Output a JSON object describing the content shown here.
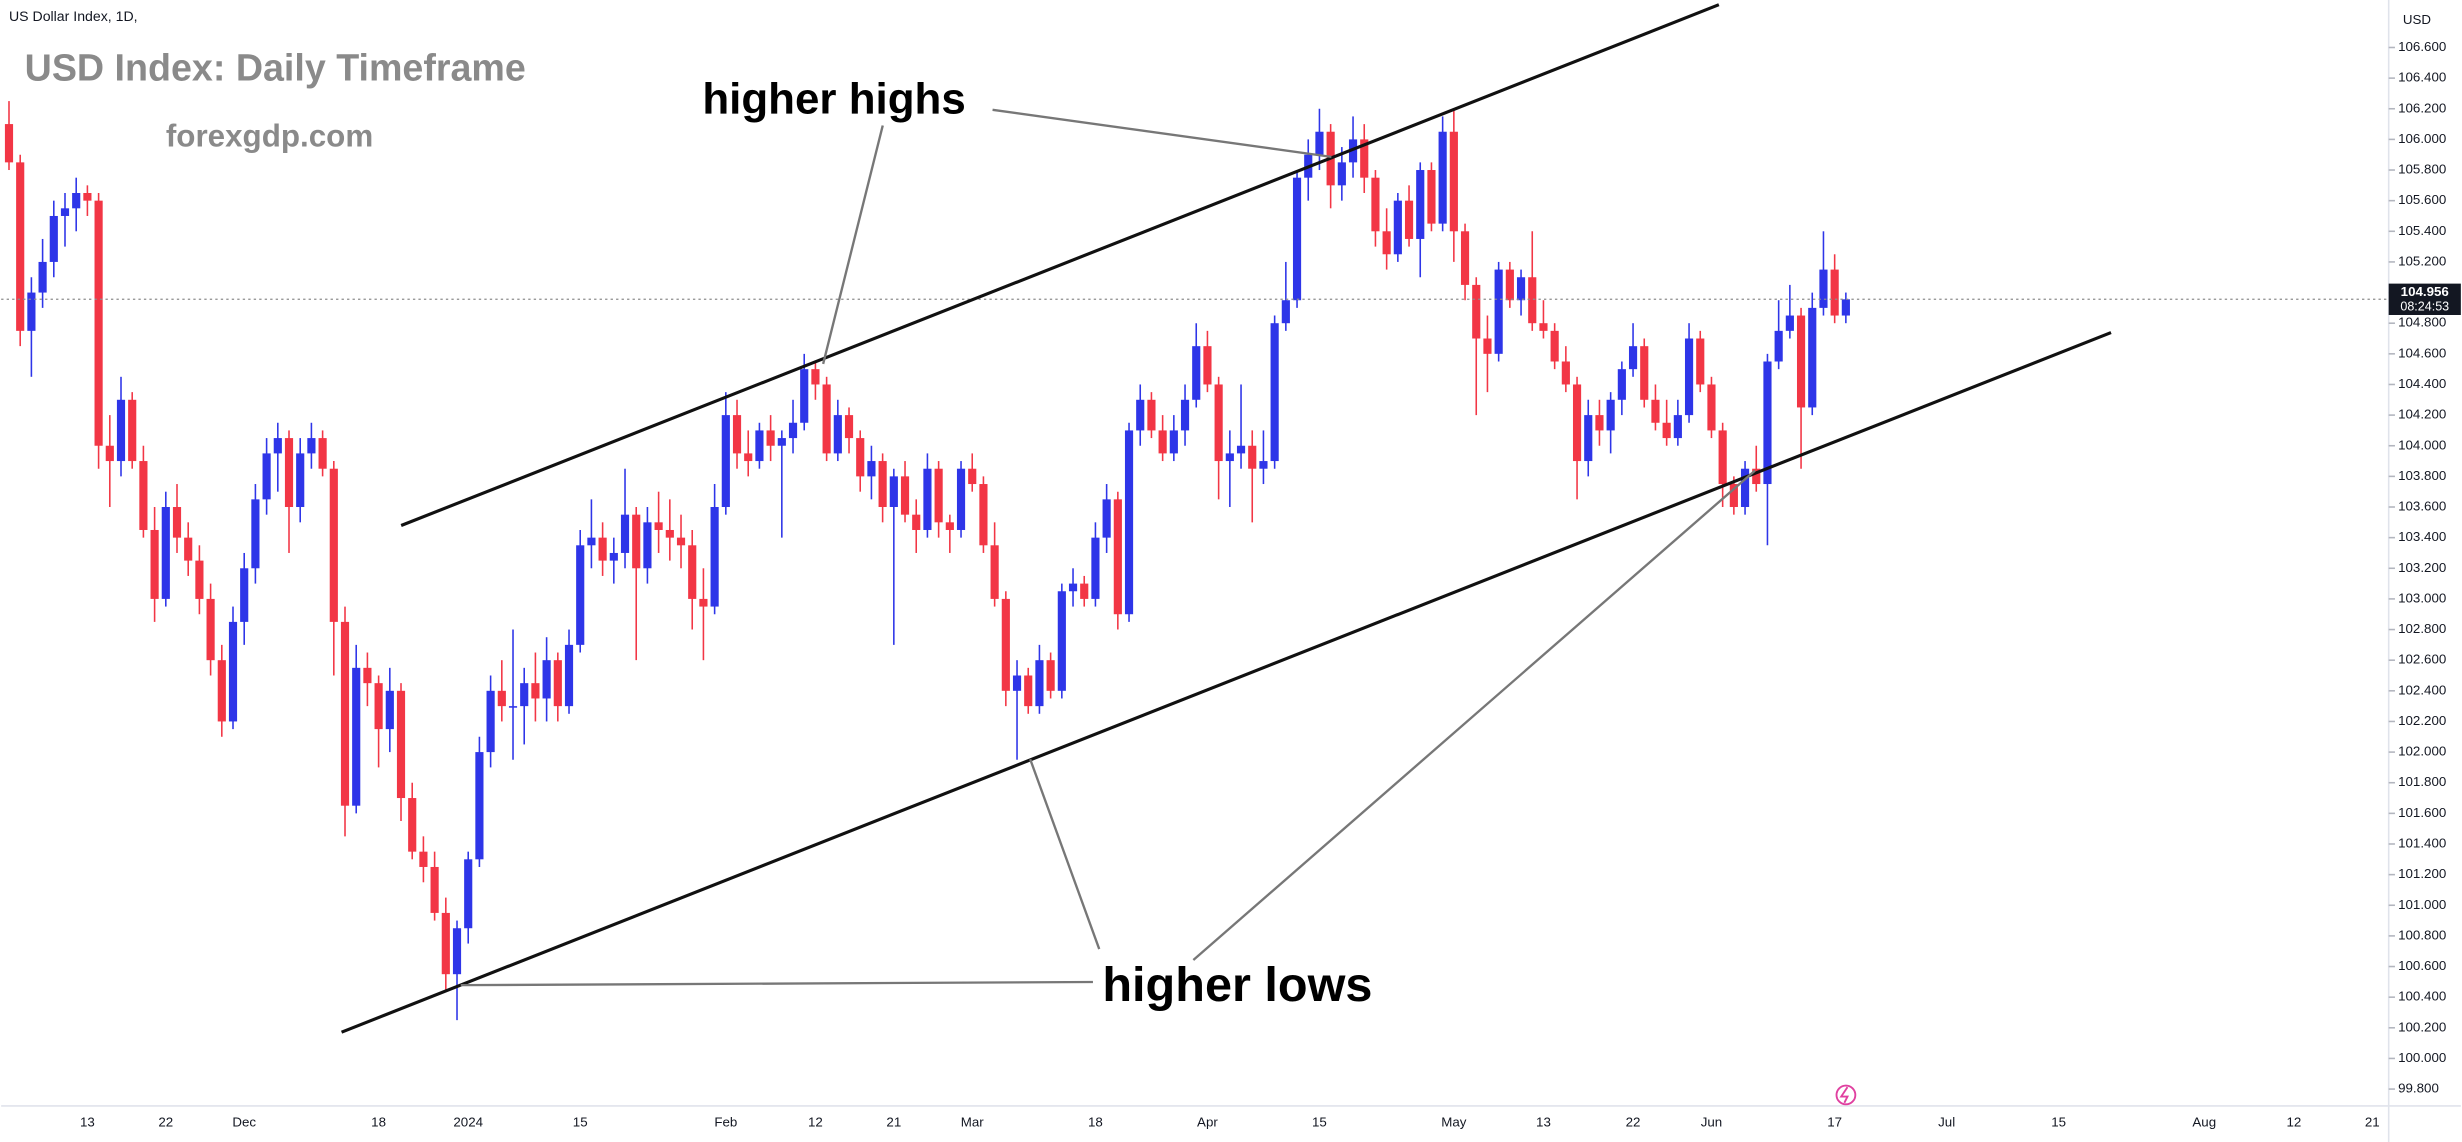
{
  "chart_data": {
    "type": "candlestick",
    "symbol_label": "US Dollar Index, 1D,",
    "title": "USD Index: Daily Timeframe",
    "subtitle": "forexgdp.com",
    "annotations": [
      "higher highs",
      "higher lows"
    ],
    "y_unit": "USD",
    "last_price": 104.956,
    "countdown": "08:24:53",
    "up_color": "#2e35e8",
    "down_color": "#f23645",
    "grid": false,
    "ylim": [
      99.69,
      106.91
    ],
    "yticks": [
      {
        "value": 99.8,
        "label": "99.800"
      },
      {
        "value": 100,
        "label": "100.000"
      },
      {
        "value": 100.2,
        "label": "100.200"
      },
      {
        "value": 100.4,
        "label": "100.400"
      },
      {
        "value": 100.6,
        "label": "100.600"
      },
      {
        "value": 100.8,
        "label": "100.800"
      },
      {
        "value": 101,
        "label": "101.000"
      },
      {
        "value": 101.2,
        "label": "101.200"
      },
      {
        "value": 101.4,
        "label": "101.400"
      },
      {
        "value": 101.6,
        "label": "101.600"
      },
      {
        "value": 101.8,
        "label": "101.800"
      },
      {
        "value": 102,
        "label": "102.000"
      },
      {
        "value": 102.2,
        "label": "102.200"
      },
      {
        "value": 102.4,
        "label": "102.400"
      },
      {
        "value": 102.6,
        "label": "102.600"
      },
      {
        "value": 102.8,
        "label": "102.800"
      },
      {
        "value": 103,
        "label": "103.000"
      },
      {
        "value": 103.2,
        "label": "103.200"
      },
      {
        "value": 103.4,
        "label": "103.400"
      },
      {
        "value": 103.6,
        "label": "103.600"
      },
      {
        "value": 103.8,
        "label": "103.800"
      },
      {
        "value": 104,
        "label": "104.000"
      },
      {
        "value": 104.2,
        "label": "104.200"
      },
      {
        "value": 104.4,
        "label": "104.400"
      },
      {
        "value": 104.6,
        "label": "104.600"
      },
      {
        "value": 104.8,
        "label": "104.800"
      },
      {
        "value": 105,
        "label": "105.000"
      },
      {
        "value": 105.2,
        "label": "105.200"
      },
      {
        "value": 105.4,
        "label": "105.400"
      },
      {
        "value": 105.6,
        "label": "105.600"
      },
      {
        "value": 105.8,
        "label": "105.800"
      },
      {
        "value": 106,
        "label": "106.000"
      },
      {
        "value": 106.2,
        "label": "106.200"
      },
      {
        "value": 106.4,
        "label": "106.400"
      },
      {
        "value": 106.6,
        "label": "106.600"
      }
    ],
    "categories": [
      null,
      null,
      null,
      null,
      null,
      null,
      null,
      "13",
      null,
      null,
      null,
      null,
      null,
      null,
      "22",
      null,
      null,
      null,
      null,
      null,
      null,
      "Dec",
      null,
      null,
      null,
      null,
      null,
      null,
      null,
      null,
      null,
      null,
      null,
      "18",
      null,
      null,
      null,
      null,
      null,
      null,
      null,
      "2024",
      null,
      null,
      null,
      null,
      null,
      null,
      null,
      null,
      null,
      "15",
      null,
      null,
      null,
      null,
      null,
      null,
      null,
      null,
      null,
      null,
      null,
      null,
      "Feb",
      null,
      null,
      null,
      null,
      null,
      null,
      null,
      "12",
      null,
      null,
      null,
      null,
      null,
      null,
      "21",
      null,
      null,
      null,
      null,
      null,
      null,
      "Mar",
      null,
      null,
      null,
      null,
      null,
      null,
      null,
      null,
      null,
      null,
      "18",
      null,
      null,
      null,
      null,
      null,
      null,
      null,
      null,
      null,
      "Apr",
      null,
      null,
      null,
      null,
      null,
      null,
      null,
      null,
      null,
      "15",
      null,
      null,
      null,
      null,
      null,
      null,
      null,
      null,
      null,
      null,
      null,
      "May",
      null,
      null,
      null,
      null,
      null,
      null,
      null,
      "13",
      null,
      null,
      null,
      null,
      null,
      null,
      null,
      "22",
      null,
      null,
      null,
      null,
      null,
      null,
      "Jun",
      null,
      null,
      null,
      null,
      null,
      null,
      null,
      null,
      null,
      null,
      "17",
      null,
      null,
      null,
      null,
      null,
      null,
      null,
      null,
      null,
      "Jul",
      null,
      null,
      null,
      null,
      null,
      null,
      null,
      null,
      null,
      "15",
      null,
      null,
      null,
      null,
      null,
      null,
      null,
      null,
      null,
      null,
      null,
      null,
      "Aug",
      null,
      null,
      null,
      null,
      null,
      null,
      null,
      "12",
      null,
      null,
      null,
      null,
      null,
      null,
      "21"
    ],
    "ohlc": [
      [
        106.1,
        106.25,
        105.8,
        105.85
      ],
      [
        105.85,
        105.9,
        104.65,
        104.75
      ],
      [
        104.75,
        105.1,
        104.45,
        105.0
      ],
      [
        105.0,
        105.35,
        104.9,
        105.2
      ],
      [
        105.2,
        105.6,
        105.1,
        105.5
      ],
      [
        105.5,
        105.65,
        105.3,
        105.55
      ],
      [
        105.55,
        105.75,
        105.4,
        105.65
      ],
      [
        105.65,
        105.7,
        105.5,
        105.6
      ],
      [
        105.6,
        105.65,
        103.85,
        104.0
      ],
      [
        104.0,
        104.2,
        103.6,
        103.9
      ],
      [
        103.9,
        104.45,
        103.8,
        104.3
      ],
      [
        104.3,
        104.35,
        103.85,
        103.9
      ],
      [
        103.9,
        104.0,
        103.4,
        103.45
      ],
      [
        103.45,
        103.6,
        102.85,
        103.0
      ],
      [
        103.0,
        103.7,
        102.95,
        103.6
      ],
      [
        103.6,
        103.75,
        103.3,
        103.4
      ],
      [
        103.4,
        103.5,
        103.15,
        103.25
      ],
      [
        103.25,
        103.35,
        102.9,
        103.0
      ],
      [
        103.0,
        103.1,
        102.5,
        102.6
      ],
      [
        102.6,
        102.7,
        102.1,
        102.2
      ],
      [
        102.2,
        102.95,
        102.15,
        102.85
      ],
      [
        102.85,
        103.3,
        102.7,
        103.2
      ],
      [
        103.2,
        103.75,
        103.1,
        103.65
      ],
      [
        103.65,
        104.05,
        103.55,
        103.95
      ],
      [
        103.95,
        104.15,
        103.7,
        104.05
      ],
      [
        104.05,
        104.1,
        103.3,
        103.6
      ],
      [
        103.6,
        104.05,
        103.5,
        103.95
      ],
      [
        103.95,
        104.15,
        103.85,
        104.05
      ],
      [
        104.05,
        104.1,
        103.8,
        103.85
      ],
      [
        103.85,
        103.9,
        102.5,
        102.85
      ],
      [
        102.85,
        102.95,
        101.45,
        101.65
      ],
      [
        101.65,
        102.7,
        101.6,
        102.55
      ],
      [
        102.55,
        102.65,
        102.3,
        102.45
      ],
      [
        102.45,
        102.5,
        101.9,
        102.15
      ],
      [
        102.15,
        102.55,
        102.0,
        102.4
      ],
      [
        102.4,
        102.45,
        101.55,
        101.7
      ],
      [
        101.7,
        101.8,
        101.3,
        101.35
      ],
      [
        101.35,
        101.45,
        101.15,
        101.25
      ],
      [
        101.25,
        101.35,
        100.9,
        100.95
      ],
      [
        100.95,
        101.05,
        100.45,
        100.55
      ],
      [
        100.55,
        100.9,
        100.25,
        100.85
      ],
      [
        100.85,
        101.35,
        100.75,
        101.3
      ],
      [
        101.3,
        102.1,
        101.25,
        102.0
      ],
      [
        102.0,
        102.5,
        101.9,
        102.4
      ],
      [
        102.4,
        102.6,
        102.2,
        102.3
      ],
      [
        102.3,
        102.8,
        101.95,
        102.3
      ],
      [
        102.3,
        102.55,
        102.05,
        102.45
      ],
      [
        102.45,
        102.65,
        102.2,
        102.35
      ],
      [
        102.35,
        102.75,
        102.2,
        102.6
      ],
      [
        102.6,
        102.65,
        102.2,
        102.3
      ],
      [
        102.3,
        102.8,
        102.25,
        102.7
      ],
      [
        102.7,
        103.45,
        102.65,
        103.35
      ],
      [
        103.35,
        103.65,
        103.2,
        103.4
      ],
      [
        103.4,
        103.5,
        103.15,
        103.25
      ],
      [
        103.25,
        103.4,
        103.1,
        103.3
      ],
      [
        103.3,
        103.85,
        103.2,
        103.55
      ],
      [
        103.55,
        103.6,
        102.6,
        103.2
      ],
      [
        103.2,
        103.6,
        103.1,
        103.5
      ],
      [
        103.5,
        103.7,
        103.3,
        103.45
      ],
      [
        103.45,
        103.65,
        103.25,
        103.4
      ],
      [
        103.4,
        103.55,
        103.2,
        103.35
      ],
      [
        103.35,
        103.45,
        102.8,
        103.0
      ],
      [
        103.0,
        103.2,
        102.6,
        102.95
      ],
      [
        102.95,
        103.75,
        102.9,
        103.6
      ],
      [
        103.6,
        104.35,
        103.55,
        104.2
      ],
      [
        104.2,
        104.3,
        103.85,
        103.95
      ],
      [
        103.95,
        104.1,
        103.8,
        103.9
      ],
      [
        103.9,
        104.15,
        103.85,
        104.1
      ],
      [
        104.1,
        104.2,
        103.9,
        104.0
      ],
      [
        104.0,
        104.1,
        103.4,
        104.05
      ],
      [
        104.05,
        104.3,
        103.95,
        104.15
      ],
      [
        104.15,
        104.6,
        104.1,
        104.5
      ],
      [
        104.5,
        104.55,
        104.3,
        104.4
      ],
      [
        104.4,
        104.45,
        103.9,
        103.95
      ],
      [
        103.95,
        104.3,
        103.9,
        104.2
      ],
      [
        104.2,
        104.25,
        103.95,
        104.05
      ],
      [
        104.05,
        104.1,
        103.7,
        103.8
      ],
      [
        103.8,
        104.0,
        103.65,
        103.9
      ],
      [
        103.9,
        103.95,
        103.5,
        103.6
      ],
      [
        103.6,
        103.85,
        102.7,
        103.8
      ],
      [
        103.8,
        103.9,
        103.5,
        103.55
      ],
      [
        103.55,
        103.65,
        103.3,
        103.45
      ],
      [
        103.45,
        103.95,
        103.4,
        103.85
      ],
      [
        103.85,
        103.9,
        103.4,
        103.5
      ],
      [
        103.5,
        103.55,
        103.3,
        103.45
      ],
      [
        103.45,
        103.9,
        103.4,
        103.85
      ],
      [
        103.85,
        103.95,
        103.7,
        103.75
      ],
      [
        103.75,
        103.8,
        103.3,
        103.35
      ],
      [
        103.35,
        103.5,
        102.95,
        103.0
      ],
      [
        103.0,
        103.05,
        102.3,
        102.4
      ],
      [
        102.4,
        102.6,
        101.95,
        102.5
      ],
      [
        102.5,
        102.55,
        102.25,
        102.3
      ],
      [
        102.3,
        102.7,
        102.25,
        102.6
      ],
      [
        102.6,
        102.65,
        102.35,
        102.4
      ],
      [
        102.4,
        103.1,
        102.35,
        103.05
      ],
      [
        103.05,
        103.2,
        102.95,
        103.1
      ],
      [
        103.1,
        103.15,
        102.95,
        103.0
      ],
      [
        103.0,
        103.5,
        102.95,
        103.4
      ],
      [
        103.4,
        103.75,
        103.3,
        103.65
      ],
      [
        103.65,
        103.7,
        102.8,
        102.9
      ],
      [
        102.9,
        104.15,
        102.85,
        104.1
      ],
      [
        104.1,
        104.4,
        104.0,
        104.3
      ],
      [
        104.3,
        104.35,
        104.05,
        104.1
      ],
      [
        104.1,
        104.2,
        103.9,
        103.95
      ],
      [
        103.95,
        104.2,
        103.9,
        104.1
      ],
      [
        104.1,
        104.4,
        104.0,
        104.3
      ],
      [
        104.3,
        104.8,
        104.25,
        104.65
      ],
      [
        104.65,
        104.75,
        104.35,
        104.4
      ],
      [
        104.4,
        104.45,
        103.65,
        103.9
      ],
      [
        103.9,
        104.1,
        103.6,
        103.95
      ],
      [
        103.95,
        104.4,
        103.85,
        104.0
      ],
      [
        104.0,
        104.1,
        103.5,
        103.85
      ],
      [
        103.85,
        104.1,
        103.75,
        103.9
      ],
      [
        103.9,
        104.85,
        103.85,
        104.8
      ],
      [
        104.8,
        105.2,
        104.75,
        104.95
      ],
      [
        104.95,
        105.8,
        104.9,
        105.75
      ],
      [
        105.75,
        106.0,
        105.6,
        105.9
      ],
      [
        105.9,
        106.2,
        105.8,
        106.05
      ],
      [
        106.05,
        106.1,
        105.55,
        105.7
      ],
      [
        105.7,
        105.95,
        105.6,
        105.85
      ],
      [
        105.85,
        106.15,
        105.75,
        106.0
      ],
      [
        106.0,
        106.1,
        105.65,
        105.75
      ],
      [
        105.75,
        105.8,
        105.3,
        105.4
      ],
      [
        105.4,
        105.55,
        105.15,
        105.25
      ],
      [
        105.25,
        105.65,
        105.2,
        105.6
      ],
      [
        105.6,
        105.7,
        105.3,
        105.35
      ],
      [
        105.35,
        105.85,
        105.1,
        105.8
      ],
      [
        105.8,
        105.85,
        105.4,
        105.45
      ],
      [
        105.45,
        106.15,
        105.4,
        106.05
      ],
      [
        106.05,
        106.2,
        105.2,
        105.4
      ],
      [
        105.4,
        105.45,
        104.95,
        105.05
      ],
      [
        105.05,
        105.1,
        104.2,
        104.7
      ],
      [
        104.7,
        104.85,
        104.35,
        104.6
      ],
      [
        104.6,
        105.2,
        104.55,
        105.15
      ],
      [
        105.15,
        105.2,
        104.9,
        104.95
      ],
      [
        104.95,
        105.15,
        104.85,
        105.1
      ],
      [
        105.1,
        105.4,
        104.75,
        104.8
      ],
      [
        104.8,
        104.95,
        104.7,
        104.75
      ],
      [
        104.75,
        104.8,
        104.5,
        104.55
      ],
      [
        104.55,
        104.65,
        104.35,
        104.4
      ],
      [
        104.4,
        104.45,
        103.65,
        103.9
      ],
      [
        103.9,
        104.3,
        103.8,
        104.2
      ],
      [
        104.2,
        104.3,
        104.0,
        104.1
      ],
      [
        104.1,
        104.35,
        103.95,
        104.3
      ],
      [
        104.3,
        104.55,
        104.2,
        104.5
      ],
      [
        104.5,
        104.8,
        104.45,
        104.65
      ],
      [
        104.65,
        104.7,
        104.25,
        104.3
      ],
      [
        104.3,
        104.4,
        104.1,
        104.15
      ],
      [
        104.15,
        104.3,
        104.0,
        104.05
      ],
      [
        104.05,
        104.3,
        104.0,
        104.2
      ],
      [
        104.2,
        104.8,
        104.15,
        104.7
      ],
      [
        104.7,
        104.75,
        104.35,
        104.4
      ],
      [
        104.4,
        104.45,
        104.05,
        104.1
      ],
      [
        104.1,
        104.15,
        103.6,
        103.75
      ],
      [
        103.75,
        103.8,
        103.55,
        103.6
      ],
      [
        103.6,
        103.9,
        103.55,
        103.85
      ],
      [
        103.85,
        104.0,
        103.7,
        103.75
      ],
      [
        103.75,
        104.6,
        103.35,
        104.55
      ],
      [
        104.55,
        104.95,
        104.5,
        104.75
      ],
      [
        104.75,
        105.05,
        104.7,
        104.85
      ],
      [
        104.85,
        104.9,
        103.85,
        104.25
      ],
      [
        104.25,
        105.0,
        104.2,
        104.9
      ],
      [
        104.9,
        105.4,
        104.85,
        105.15
      ],
      [
        105.15,
        105.25,
        104.8,
        104.85
      ],
      [
        104.85,
        105.0,
        104.8,
        104.956
      ],
      null,
      null,
      null,
      null,
      null,
      null,
      null,
      null,
      null,
      null,
      null,
      null,
      null,
      null,
      null,
      null,
      null,
      null,
      null,
      null,
      null,
      null,
      null,
      null,
      null,
      null,
      null,
      null,
      null,
      null,
      null,
      null,
      null,
      null,
      null,
      null,
      null,
      null,
      null,
      null,
      null,
      null,
      null,
      null,
      null,
      null,
      null
    ]
  }
}
